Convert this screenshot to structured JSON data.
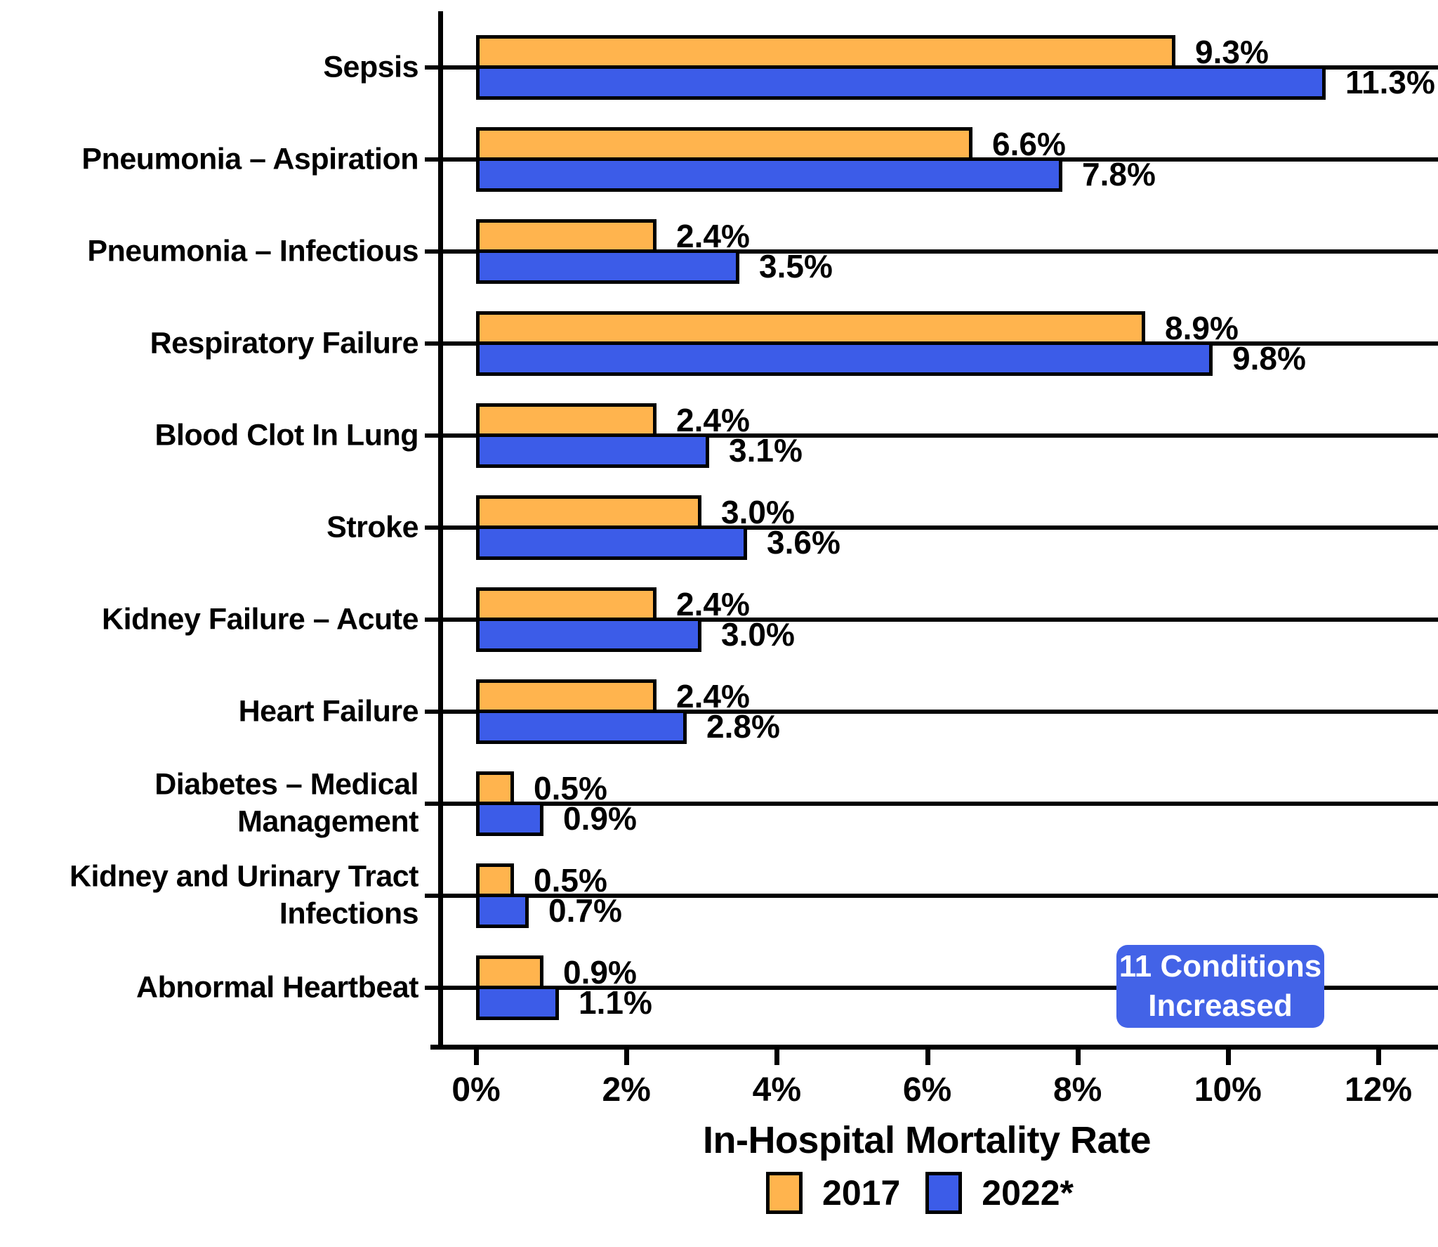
{
  "chart_data": {
    "type": "bar",
    "orientation": "horizontal",
    "title": "",
    "xlabel": "In-Hospital Mortality Rate",
    "ylabel": "",
    "xlim": [
      0,
      12
    ],
    "x_ticks": [
      "0%",
      "2%",
      "4%",
      "6%",
      "8%",
      "10%",
      "12%"
    ],
    "grid": "horizontal category lines",
    "legend_position": "bottom",
    "categories": [
      "Sepsis",
      "Pneumonia – Aspiration",
      "Pneumonia – Infectious",
      "Respiratory Failure",
      "Blood Clot In Lung",
      "Stroke",
      "Kidney Failure – Acute",
      "Heart Failure",
      "Diabetes – Medical Management",
      "Kidney and Urinary Tract Infections",
      "Abnormal Heartbeat"
    ],
    "series": [
      {
        "name": "2017",
        "color": "#FFB44E",
        "values": [
          9.3,
          6.6,
          2.4,
          8.9,
          2.4,
          3.0,
          2.4,
          2.4,
          0.5,
          0.5,
          0.9
        ],
        "labels": [
          "9.3%",
          "6.6%",
          "2.4%",
          "8.9%",
          "2.4%",
          "3.0%",
          "2.4%",
          "2.4%",
          "0.5%",
          "0.5%",
          "0.9%"
        ]
      },
      {
        "name": "2022*",
        "color": "#3C5CE8",
        "values": [
          11.3,
          7.8,
          3.5,
          9.8,
          3.1,
          3.6,
          3.0,
          2.8,
          0.9,
          0.7,
          1.1
        ],
        "labels": [
          "11.3%",
          "7.8%",
          "3.5%",
          "9.8%",
          "3.1%",
          "3.6%",
          "3.0%",
          "2.8%",
          "0.9%",
          "0.7%",
          "1.1%"
        ]
      }
    ],
    "annotation": {
      "line1": "11 Conditions",
      "line2": "Increased",
      "bg_color": "#4363E7",
      "text_color": "#FFFFFF"
    },
    "colors": {
      "axis": "#000000",
      "bar_border": "#000000",
      "background": "#FFFFFF"
    }
  },
  "legend": {
    "items": [
      {
        "label": "2017",
        "color": "#FFB44E"
      },
      {
        "label": "2022*",
        "color": "#3C5CE8"
      }
    ]
  }
}
